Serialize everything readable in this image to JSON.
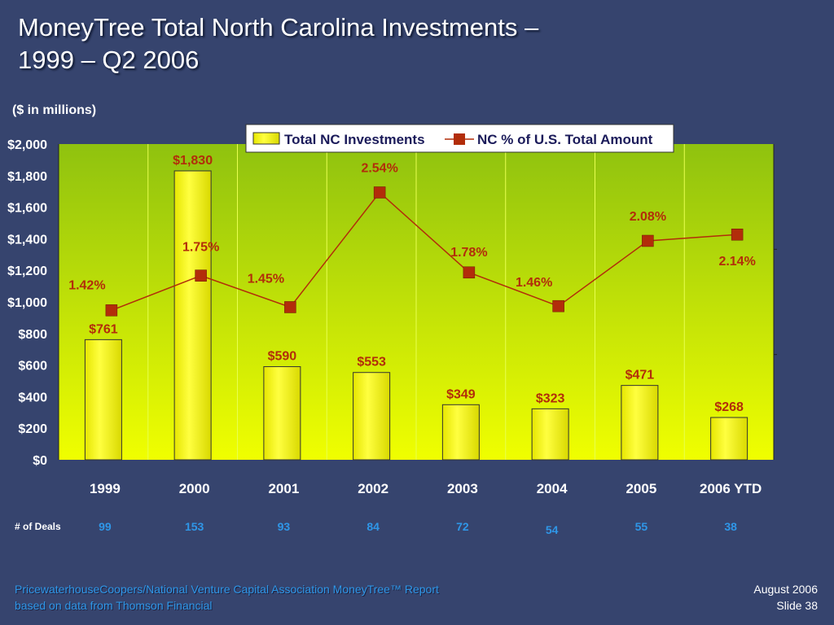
{
  "slide": {
    "title_line1": "MoneyTree Total North Carolina Investments –",
    "title_line2": "1999 – Q2 2006",
    "subtitle": "($ in millions)",
    "deals_label": "# of Deals",
    "footer_line1": "PricewaterhouseCoopers/National Venture Capital Association MoneyTree™ Report",
    "footer_line2": "based on data from Thomson Financial",
    "date": "August 2006",
    "slide_number": "Slide 38"
  },
  "chart_data": {
    "type": "bar",
    "categories": [
      "1999",
      "2000",
      "2001",
      "2002",
      "2003",
      "2004",
      "2005",
      "2006 YTD"
    ],
    "series": [
      {
        "name": "Total NC Investments",
        "type": "bar",
        "axis": "left",
        "values": [
          761,
          1830,
          590,
          553,
          349,
          323,
          471,
          268
        ],
        "labels": [
          "$761",
          "$1,830",
          "$590",
          "$553",
          "$349",
          "$323",
          "$471",
          "$268"
        ],
        "color": "#ffff00"
      },
      {
        "name": "NC % of U.S. Total Amount",
        "type": "line",
        "axis": "right",
        "values": [
          1.42,
          1.75,
          1.45,
          2.54,
          1.78,
          1.46,
          2.08,
          2.14
        ],
        "labels": [
          "1.42%",
          "1.75%",
          "1.45%",
          "2.54%",
          "1.78%",
          "1.46%",
          "2.08%",
          "2.14%"
        ],
        "color": "#b22d0a"
      }
    ],
    "ylim": [
      0,
      2000
    ],
    "yticks": [
      "$0",
      "$200",
      "$400",
      "$600",
      "$800",
      "$1,000",
      "$1,200",
      "$1,400",
      "$1,600",
      "$1,800",
      "$2,000"
    ],
    "y2lim": [
      0,
      3
    ],
    "deals": [
      "99",
      "153",
      "93",
      "84",
      "72",
      "54",
      "55",
      "38"
    ],
    "legend_position": "top",
    "colors": {
      "plot_top": "#8fc20f",
      "plot_bottom": "#f0ff00",
      "axis_text": "#ffffff",
      "category_text": "#ffffff",
      "bar_label": "#b22d0a",
      "deal_text": "#2f97e8"
    }
  }
}
